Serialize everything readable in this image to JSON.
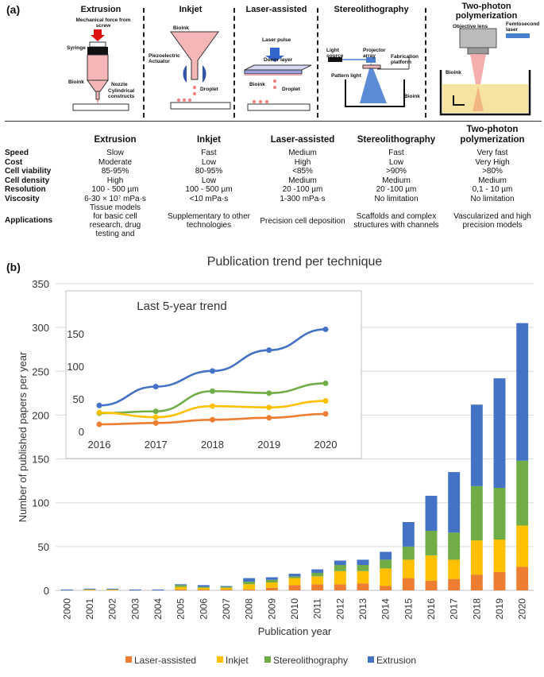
{
  "panel_a_label": "(a)",
  "panel_b_label": "(b)",
  "diagrams": {
    "extrusion": {
      "title": "Extrusion",
      "force": "Mechanical force from screw",
      "syringe": "Syringe",
      "bioink": "Bioink",
      "nozzle": "Nozzle",
      "constructs": "Cylindrical constructs"
    },
    "inkjet": {
      "title": "Inkjet",
      "bioink": "Bioink",
      "actuator": "Piezoelectric Actuator",
      "droplet": "Droplet"
    },
    "laser": {
      "title": "Laser-assisted",
      "pulse": "Laser pulse",
      "donor": "Donor layer",
      "bioink": "Bioink",
      "droplet": "Droplet"
    },
    "stereo": {
      "title": "Stereolithography",
      "light": "Light source",
      "projector": "Projector array",
      "platform": "Fabrication platform",
      "pattern": "Pattern light",
      "bioink": "Bioink"
    },
    "twophoton": {
      "title": "Two-photon polymerization",
      "objective": "Objective lens",
      "laser": "Femtosecond laser",
      "bioink": "Bioink"
    }
  },
  "table": {
    "headers": [
      "Extrusion",
      "Inkjet",
      "Laser-assisted",
      "Stereolithography",
      "Two-photon polymerization"
    ],
    "rows": [
      {
        "label": "Speed",
        "cells": [
          "Slow",
          "Fast",
          "Medium",
          "Fast",
          "Very fast"
        ]
      },
      {
        "label": "Cost",
        "cells": [
          "Moderate",
          "Low",
          "High",
          "Low",
          "Very High"
        ]
      },
      {
        "label": "Cell viability",
        "cells": [
          "85-95%",
          "80-95%",
          "<85%",
          ">90%",
          ">80%"
        ]
      },
      {
        "label": "Cell density",
        "cells": [
          "High",
          "Low",
          "Medium",
          "Medium",
          "Medium"
        ]
      },
      {
        "label": "Resolution",
        "cells": [
          "100 - 500 µm",
          "100 - 500 µm",
          "20 -100 µm",
          "20 -100 µm",
          "0,1 - 10 µm"
        ]
      },
      {
        "label": "Viscosity",
        "cells": [
          "6-30 × 10⁷ mPa·s",
          "<10 mPa·s",
          "1-300 mPa·s",
          "No limitation",
          "No limitation"
        ]
      },
      {
        "label": "Applications",
        "cells": [
          "Tissue models for basic cell research, drug testing and",
          "Supplementary to other technologies",
          "Precision cell deposition",
          "Scaffolds and complex structures with channels",
          "Vascularized and high precision models"
        ]
      }
    ]
  },
  "chart_data": [
    {
      "type": "bar",
      "stacked": true,
      "title": "Publication trend per technique",
      "xlabel": "Publication year",
      "ylabel": "Number of published papers per year",
      "ylim": [
        0,
        350
      ],
      "yticks": [
        0,
        50,
        100,
        150,
        200,
        250,
        300,
        350
      ],
      "categories": [
        "2000",
        "2001",
        "2002",
        "2003",
        "2004",
        "2005",
        "2006",
        "2007",
        "2008",
        "2009",
        "2010",
        "2011",
        "2012",
        "2013",
        "2014",
        "2015",
        "2016",
        "2017",
        "2018",
        "2019",
        "2020"
      ],
      "series": [
        {
          "name": "Laser-assisted",
          "color": "#ED7D31",
          "values": [
            0,
            0,
            0,
            0,
            0,
            1,
            1,
            1,
            1,
            3,
            6,
            7,
            7,
            8,
            5,
            14,
            11,
            13,
            18,
            21,
            27
          ]
        },
        {
          "name": "Inkjet",
          "color": "#FFC000",
          "values": [
            0,
            1,
            1,
            0,
            0,
            3,
            2,
            2,
            6,
            6,
            8,
            9,
            15,
            14,
            20,
            21,
            29,
            22,
            39,
            37,
            47
          ]
        },
        {
          "name": "Stereolithography",
          "color": "#70AD47",
          "values": [
            0,
            0,
            0,
            0,
            0,
            2,
            1,
            1,
            3,
            3,
            2,
            4,
            7,
            7,
            10,
            15,
            28,
            31,
            62,
            59,
            74
          ]
        },
        {
          "name": "Extrusion",
          "color": "#4472C4",
          "values": [
            1,
            1,
            1,
            1,
            1,
            1,
            2,
            1,
            4,
            3,
            3,
            4,
            5,
            6,
            9,
            28,
            40,
            69,
            93,
            125,
            157
          ]
        }
      ],
      "legend": "bottom"
    },
    {
      "type": "line",
      "title": "Last 5-year trend",
      "categories": [
        "2016",
        "2017",
        "2018",
        "2019",
        "2020"
      ],
      "ylim": [
        0,
        160
      ],
      "yticks": [
        0,
        50,
        100,
        150
      ],
      "series": [
        {
          "name": "Extrusion",
          "color": "#4472C4",
          "values": [
            40,
            69,
            93,
            125,
            157
          ]
        },
        {
          "name": "Stereolithography",
          "color": "#70AD47",
          "values": [
            28,
            31,
            62,
            59,
            74
          ]
        },
        {
          "name": "Inkjet",
          "color": "#FFC000",
          "values": [
            29,
            22,
            39,
            37,
            47
          ]
        },
        {
          "name": "Laser-assisted",
          "color": "#ED7D31",
          "values": [
            11,
            13,
            18,
            21,
            27
          ]
        }
      ]
    }
  ]
}
